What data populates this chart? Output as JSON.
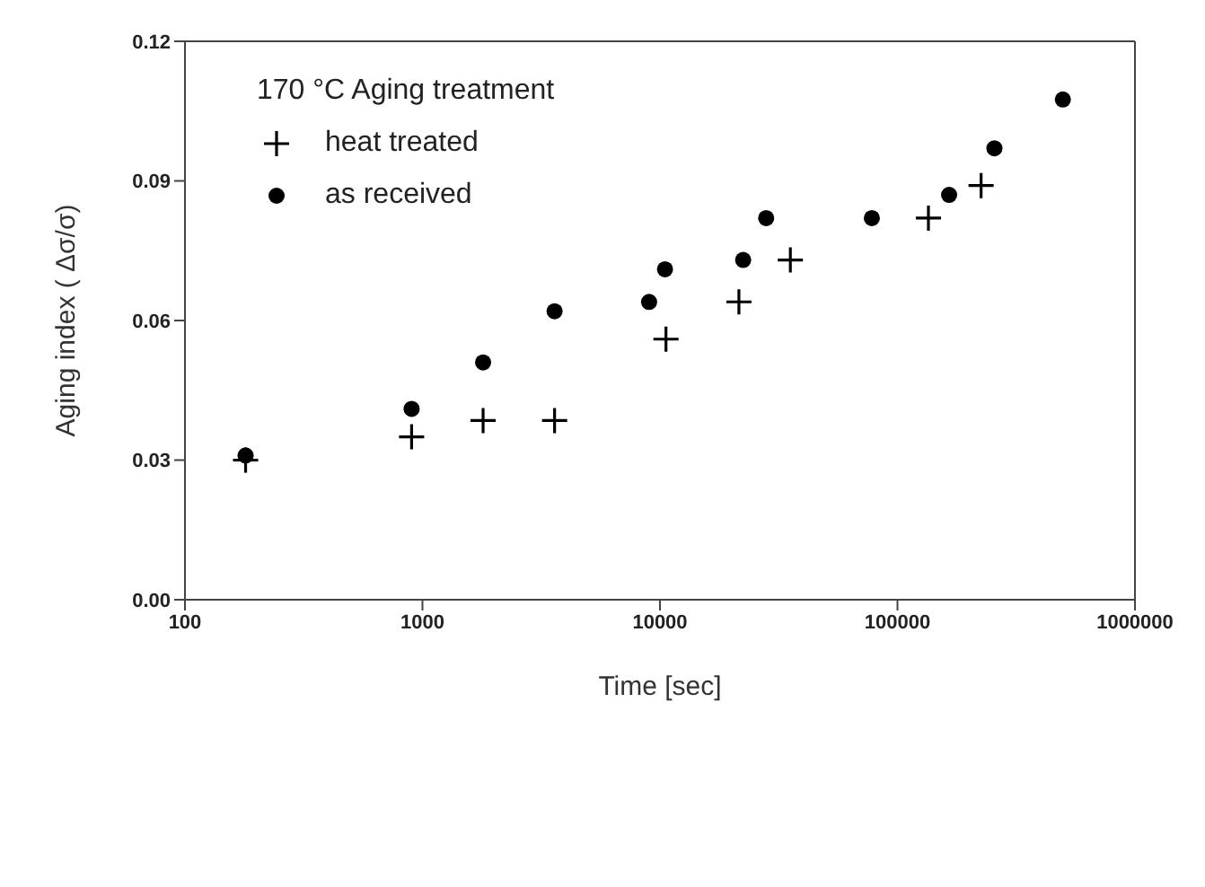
{
  "chart_data": {
    "type": "scatter",
    "xlabel": "Time [sec]",
    "ylabel": "Aging index ( Δσ/σ)",
    "legend_title": "170 °C Aging treatment",
    "log": "x",
    "xlim": [
      100,
      1000000
    ],
    "xticks": [
      100,
      1000,
      10000,
      100000,
      1000000
    ],
    "ylim": [
      0,
      0.12
    ],
    "yticks": [
      {
        "value": 0,
        "label": "0.00"
      },
      {
        "value": 0.03,
        "label": "0.03"
      },
      {
        "value": 0.06,
        "label": "0.06"
      },
      {
        "value": 0.09,
        "label": "0.09"
      },
      {
        "value": 0.12,
        "label": "0.12"
      }
    ],
    "legend": "top left",
    "series": [
      {
        "name": "heat treated",
        "color": "#000000",
        "marker": "cross",
        "x": [
          180,
          900,
          1800,
          3600,
          10600,
          21500,
          35400,
          135000,
          225000
        ],
        "values": [
          0.03,
          0.035,
          0.0385,
          0.0385,
          0.056,
          0.064,
          0.073,
          0.082,
          0.089
        ]
      },
      {
        "name": "as received",
        "color": "#000000",
        "marker": "circle",
        "x": [
          180,
          900,
          1800,
          3600,
          9000,
          10500,
          22400,
          28000,
          78000,
          165000,
          256000,
          497000
        ],
        "values": [
          0.031,
          0.041,
          0.051,
          0.062,
          0.064,
          0.071,
          0.073,
          0.082,
          0.082,
          0.087,
          0.097,
          0.1075
        ]
      }
    ]
  }
}
